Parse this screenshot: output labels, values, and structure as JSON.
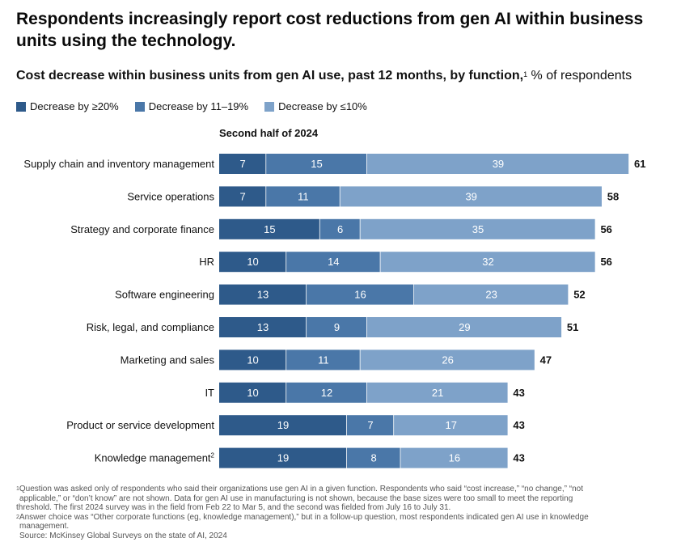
{
  "title": "Respondents increasingly report cost reductions from gen AI within business units using the technology.",
  "subtitle": {
    "bold": "Cost decrease within business units from gen AI use, past 12 months, by function,",
    "sup": "1",
    "regular": " % of respondents"
  },
  "colors": {
    "dark": "#2e5a8a",
    "mid": "#4a77a8",
    "light": "#7ea2c9",
    "text_on_bar": "#ffffff",
    "total_text": "#111111"
  },
  "chart_data": {
    "type": "bar",
    "orientation": "horizontal-stacked",
    "title": "Cost decrease within business units from gen AI use, past 12 months, by function",
    "period_label": "Second half of 2024",
    "unit": "% of respondents",
    "categories": [
      "Supply chain and inventory management",
      "Service operations",
      "Strategy and corporate finance",
      "HR",
      "Software engineering",
      "Risk, legal, and compliance",
      "Marketing and sales",
      "IT",
      "Product or service development",
      "Knowledge management"
    ],
    "category_sups": [
      "",
      "",
      "",
      "",
      "",
      "",
      "",
      "",
      "",
      "2"
    ],
    "series": [
      {
        "name": "Decrease by ≥20%",
        "color_key": "dark",
        "values": [
          7,
          7,
          15,
          10,
          13,
          13,
          10,
          10,
          19,
          19
        ]
      },
      {
        "name": "Decrease by 11–19%",
        "color_key": "mid",
        "values": [
          15,
          11,
          6,
          14,
          16,
          9,
          11,
          12,
          7,
          8
        ]
      },
      {
        "name": "Decrease by ≤10%",
        "color_key": "light",
        "values": [
          39,
          39,
          35,
          32,
          23,
          29,
          26,
          21,
          17,
          16
        ]
      }
    ],
    "totals": [
      61,
      58,
      56,
      56,
      52,
      51,
      47,
      43,
      43,
      43
    ],
    "xlim": [
      0,
      61
    ]
  },
  "footnotes": {
    "fn1_sup": "1",
    "fn1_line1": "Question was asked only of respondents who said their organizations use gen AI in a given function. Respondents who said “cost increase,” “no change,” “not",
    "fn1_line2": "applicable,” or “don’t know” are not shown. Data for gen AI use in manufacturing is not shown, because the base sizes were too small to meet the reporting",
    "fn1_line3": "threshold. The first 2024 survey was in the field from Feb 22 to Mar 5, and the second was fielded from July 16 to July 31.",
    "fn2_sup": "2",
    "fn2_line1": "Answer choice was “Other corporate functions (eg, knowledge management),” but in a follow-up question, most respondents indicated gen AI use in knowledge",
    "fn2_line2": "management.",
    "source": "Source: McKinsey Global Surveys on the state of AI, 2024"
  }
}
